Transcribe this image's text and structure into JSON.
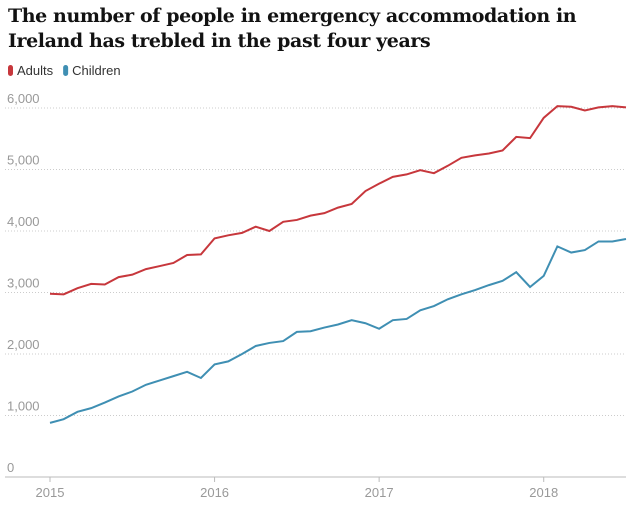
{
  "chart_data": {
    "type": "line",
    "title": "The number of people in emergency accommodation in Ireland has trebled in the past four years",
    "x": [
      2015,
      2015.083,
      2015.167,
      2015.25,
      2015.333,
      2015.417,
      2015.5,
      2015.583,
      2015.667,
      2015.75,
      2015.833,
      2015.917,
      2016,
      2016.083,
      2016.167,
      2016.25,
      2016.333,
      2016.417,
      2016.5,
      2016.583,
      2016.667,
      2016.75,
      2016.833,
      2016.917,
      2017,
      2017.083,
      2017.167,
      2017.25,
      2017.333,
      2017.417,
      2017.5,
      2017.583,
      2017.667,
      2017.75,
      2017.833,
      2017.917,
      2018,
      2018.083,
      2018.167,
      2018.25,
      2018.333,
      2018.417,
      2018.5
    ],
    "series": [
      {
        "name": "Adults",
        "color": "#c7373c",
        "values": [
          2980,
          2970,
          3070,
          3140,
          3130,
          3250,
          3290,
          3380,
          3430,
          3480,
          3610,
          3620,
          3880,
          3930,
          3970,
          4070,
          4000,
          4150,
          4180,
          4250,
          4290,
          4380,
          4440,
          4650,
          4770,
          4880,
          4920,
          4990,
          4940,
          5060,
          5190,
          5230,
          5260,
          5310,
          5530,
          5510,
          5840,
          6030,
          6020,
          5960,
          6010,
          6030,
          6010
        ]
      },
      {
        "name": "Children",
        "color": "#3f8fb3",
        "values": [
          880,
          940,
          1060,
          1120,
          1210,
          1310,
          1390,
          1500,
          1570,
          1640,
          1710,
          1610,
          1830,
          1880,
          2000,
          2130,
          2180,
          2210,
          2360,
          2370,
          2430,
          2480,
          2550,
          2500,
          2410,
          2550,
          2570,
          2710,
          2780,
          2890,
          2970,
          3040,
          3120,
          3190,
          3330,
          3090,
          3270,
          3750,
          3650,
          3690,
          3830,
          3830,
          3870
        ]
      }
    ],
    "xlim": [
      2015,
      2018.5
    ],
    "xticks": [
      2015,
      2016,
      2017,
      2018
    ],
    "ylim": [
      0,
      6000
    ],
    "yticks": [
      0,
      {
        "value": 1000,
        "label": "1,000"
      },
      {
        "value": 2000,
        "label": "2,000"
      },
      {
        "value": 3000,
        "label": "3,000"
      },
      {
        "value": 4000,
        "label": "4,000"
      },
      {
        "value": 5000,
        "label": "5,000"
      },
      {
        "value": 6000,
        "label": "6,000"
      }
    ],
    "grid": true
  }
}
